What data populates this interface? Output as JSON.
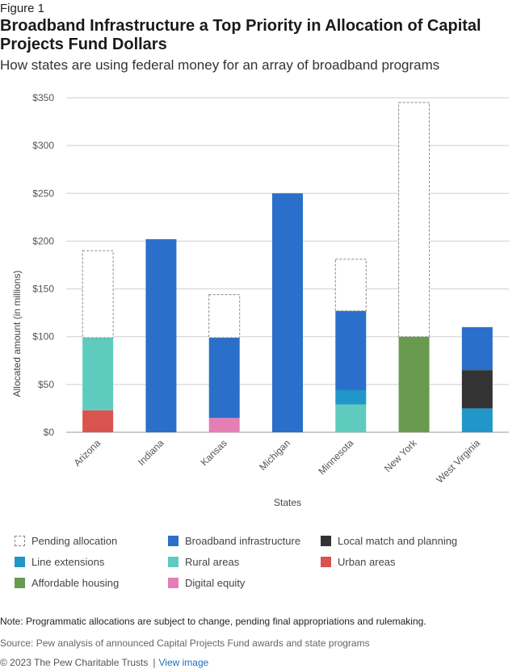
{
  "figure_label": "Figure 1",
  "title": "Broadband Infrastructure a Top Priority in Allocation of Capital Projects Fund Dollars",
  "subtitle": "How states are using federal money for an array of broadband programs",
  "chart_data": {
    "type": "bar",
    "stacked": true,
    "categories": [
      "Arizona",
      "Indiana",
      "Kansas",
      "Michigan",
      "Minnesota",
      "New York",
      "West Virginia"
    ],
    "series": [
      {
        "name": "Urban areas",
        "color": "#d9534f",
        "values": [
          23,
          0,
          0,
          0,
          0,
          0,
          0
        ]
      },
      {
        "name": "Digital equity",
        "color": "#e57fb3",
        "values": [
          0,
          0,
          15,
          0,
          0,
          0,
          0
        ]
      },
      {
        "name": "Line extensions",
        "color": "#2196c9",
        "values": [
          0,
          0,
          0,
          0,
          0,
          0,
          25
        ]
      },
      {
        "name": "Rural areas",
        "color": "#5ecbbe",
        "values": [
          76,
          0,
          0,
          0,
          29,
          0,
          0
        ]
      },
      {
        "name": "Line extensions",
        "color": "#2196c9",
        "values": [
          0,
          0,
          0,
          0,
          15,
          0,
          0
        ]
      },
      {
        "name": "Affordable housing",
        "color": "#6a9a4f",
        "values": [
          0,
          0,
          0,
          0,
          0,
          100,
          0
        ]
      },
      {
        "name": "Local match and planning",
        "color": "#333333",
        "values": [
          0,
          0,
          0,
          0,
          0,
          0,
          40
        ]
      },
      {
        "name": "Broadband infrastructure",
        "color": "#2a6fc9",
        "values": [
          0,
          202,
          84,
          250,
          83,
          0,
          45
        ]
      },
      {
        "name": "Pending allocation",
        "color": "#ffffff",
        "dashed": true,
        "values": [
          91,
          0,
          45,
          0,
          54,
          245,
          0
        ]
      }
    ],
    "xlabel": "States",
    "ylabel": "Allocated amount (in millions)",
    "ylim": [
      0,
      350
    ],
    "yticks": [
      0,
      50,
      100,
      150,
      200,
      250,
      300,
      350
    ],
    "ytick_labels": [
      "$0",
      "$50",
      "$100",
      "$150",
      "$200",
      "$250",
      "$300",
      "$350"
    ],
    "grid": true,
    "legend_position": "bottom"
  },
  "legend": [
    {
      "label": "Pending allocation",
      "color": "#ffffff",
      "dashed": true
    },
    {
      "label": "Broadband infrastructure",
      "color": "#2a6fc9"
    },
    {
      "label": "Local match and planning",
      "color": "#333333"
    },
    {
      "label": "Line extensions",
      "color": "#2196c9"
    },
    {
      "label": "Rural areas",
      "color": "#5ecbbe"
    },
    {
      "label": "Urban areas",
      "color": "#d9534f"
    },
    {
      "label": "Affordable housing",
      "color": "#6a9a4f"
    },
    {
      "label": "Digital equity",
      "color": "#e57fb3"
    }
  ],
  "note": "Note: Programmatic allocations are subject to change, pending final appropriations and rulemaking.",
  "source": "Source: Pew analysis of announced Capital Projects Fund awards and state programs",
  "footer": {
    "copyright": "© 2023 The Pew Charitable Trusts",
    "separator": "|",
    "link_text": "View image"
  }
}
